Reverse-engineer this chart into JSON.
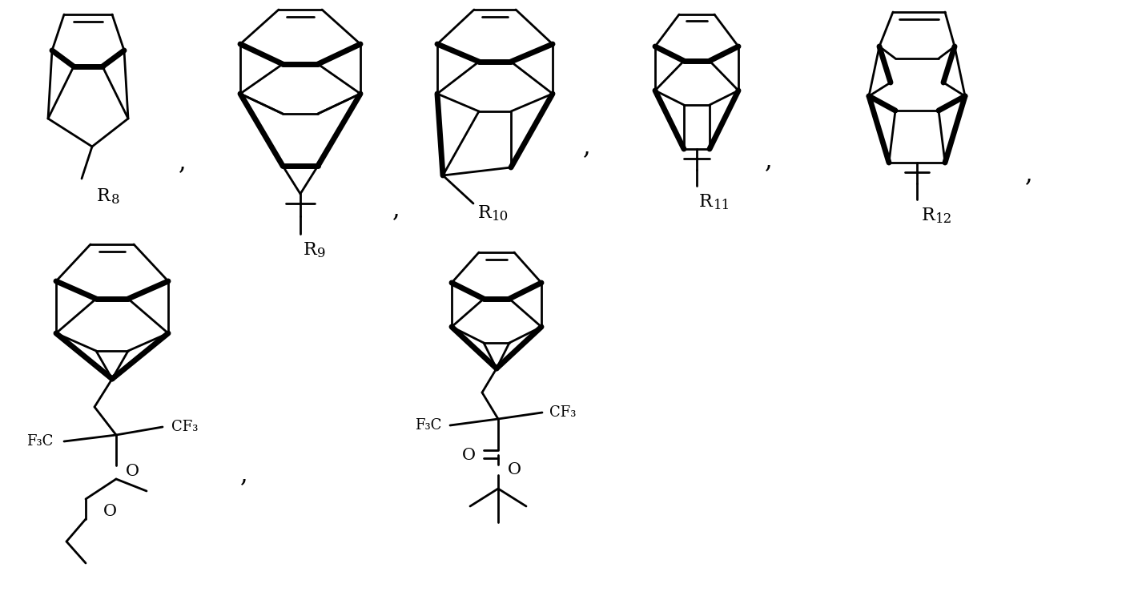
{
  "bg": "#ffffff",
  "lc": "#000000",
  "lw": 2.0,
  "blw": 5.0,
  "fw": 14.11,
  "fh": 7.69,
  "dpi": 100,
  "comma": ",",
  "F3C": "F₃C",
  "CF3": "CF₃",
  "O": "O"
}
